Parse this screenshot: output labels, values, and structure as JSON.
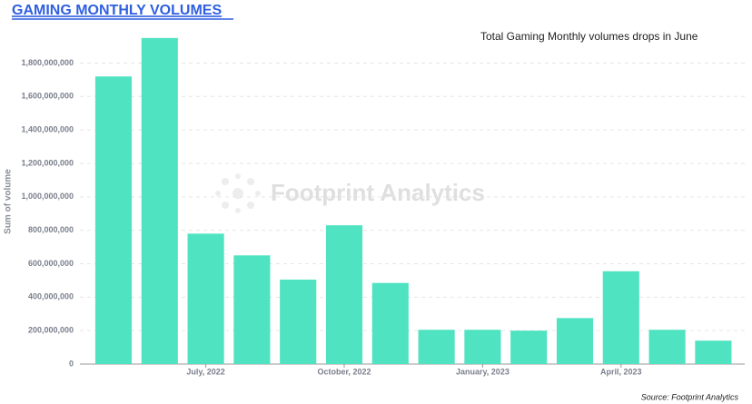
{
  "chart_data": {
    "type": "bar",
    "title": "GAMING MONTHLY VOLUMES",
    "annotation": "Total Gaming Monthly volumes drops in June",
    "y_label": "Sum of volume",
    "watermark": "Footprint Analytics",
    "source": "Source: Footprint Analytics",
    "categories": [
      null,
      null,
      "July, 2022",
      null,
      null,
      "October, 2022",
      null,
      null,
      "January, 2023",
      null,
      null,
      "April, 2023",
      null,
      null
    ],
    "values": [
      1720000000,
      1950000000,
      780000000,
      650000000,
      505000000,
      830000000,
      485000000,
      205000000,
      205000000,
      200000000,
      275000000,
      555000000,
      205000000,
      140000000
    ],
    "color": "#50e3c2",
    "ylim": [
      0,
      1960000000
    ],
    "yticks": [
      0,
      {
        "value": 200000000,
        "label": "200,000,000"
      },
      {
        "value": 400000000,
        "label": "400,000,000"
      },
      {
        "value": 600000000,
        "label": "600,000,000"
      },
      {
        "value": 800000000,
        "label": "800,000,000"
      },
      {
        "value": 1000000000,
        "label": "1,000,000,000"
      },
      {
        "value": 1200000000,
        "label": "1,200,000,000"
      },
      {
        "value": 1400000000,
        "label": "1,400,000,000"
      },
      {
        "value": 1600000000,
        "label": "1,600,000,000"
      },
      {
        "value": 1800000000,
        "label": "1,800,000,000"
      }
    ],
    "grid": true
  }
}
